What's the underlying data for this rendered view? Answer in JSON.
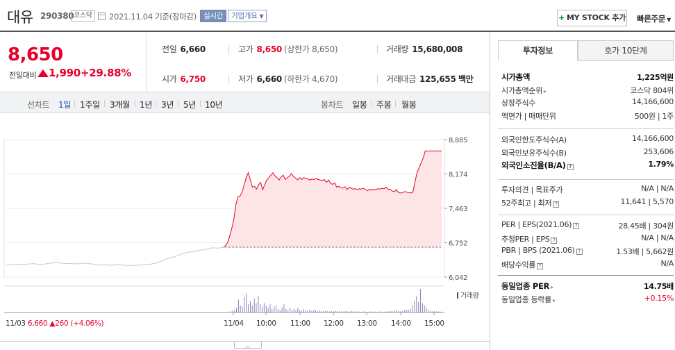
{
  "header": {
    "name": "대유",
    "code": "290380",
    "market": "코스닥",
    "date": "2021.11.04",
    "date_suffix": "기준(장마감)",
    "realtime": "실시간",
    "company_overview": "기업개요",
    "mystock": "MY STOCK 추가",
    "quick_order": "빠른주문"
  },
  "price": {
    "current": "8,650",
    "diff_label": "전일대비",
    "diff": "1,990",
    "pct": "+29.88%"
  },
  "stats": {
    "prev_label": "전일",
    "prev": "6,660",
    "high_label": "고가",
    "high": "8,650",
    "upper_limit": "(상한가 8,650)",
    "volume_label": "거래량",
    "volume": "15,680,008",
    "open_label": "시가",
    "open": "6,750",
    "low_label": "저가",
    "low": "6,660",
    "lower_limit": "(하한가 4,670)",
    "amount_label": "거래대금",
    "amount": "125,655",
    "amount_unit": "백만"
  },
  "tabs": {
    "line_label": "선차트",
    "line": [
      "1일",
      "1주일",
      "3개월",
      "1년",
      "3년",
      "5년",
      "10년"
    ],
    "candle_label": "봉차트",
    "candle": [
      "일봉",
      "주봉",
      "월봉"
    ]
  },
  "chart_data": {
    "type": "line",
    "yticks": [
      "8,885",
      "8,174",
      "7,463",
      "6,752",
      "6,042"
    ],
    "ylim": [
      6042,
      8885
    ],
    "base_price": 6660,
    "prev_day_label": "11/03",
    "prev_day_close": "6,660",
    "prev_day_change": "260",
    "prev_day_pct": "(+4.06%)",
    "xlabels": [
      "11/04",
      "10:00",
      "11:00",
      "12:00",
      "13:00",
      "14:00",
      "15:00"
    ],
    "volume_label": "거래량",
    "prev_day_series": [
      6290,
      6300,
      6305,
      6300,
      6310,
      6320,
      6305,
      6310,
      6330,
      6340,
      6330,
      6320,
      6320,
      6315,
      6330,
      6320,
      6300,
      6290,
      6295,
      6285,
      6300,
      6290,
      6280,
      6285,
      6290,
      6300,
      6310,
      6330,
      6380,
      6430,
      6450,
      6500,
      6540,
      6560,
      6580,
      6600,
      6620,
      6650,
      6640,
      6660
    ],
    "series": [
      6660,
      6700,
      6760,
      6900,
      7050,
      7250,
      7550,
      7700,
      7720,
      7800,
      7950,
      8100,
      8200,
      8050,
      7900,
      7920,
      7860,
      7950,
      8000,
      7850,
      7950,
      8050,
      8100,
      8150,
      8200,
      8130,
      8100,
      8050,
      8110,
      8150,
      8060,
      8100,
      8130,
      8180,
      8120,
      8090,
      8050,
      8100,
      8060,
      8100,
      8080,
      8070,
      8050,
      8070,
      8060,
      8080,
      8060,
      8050,
      8040,
      8060,
      8000,
      8050,
      7980,
      7960,
      7990,
      7900,
      7920,
      7890,
      7880,
      7910,
      7850,
      7900,
      7880,
      7860,
      7870,
      7850,
      7870,
      7860,
      7880,
      7850,
      7830,
      7860,
      7840,
      7860,
      7850,
      7870,
      7860,
      7880,
      7870,
      7900,
      7850,
      7860,
      7820,
      7810,
      7850,
      7790,
      7780,
      7790,
      7810,
      7800,
      7790,
      7780,
      7800,
      8000,
      8200,
      8300,
      8400,
      8500,
      8650,
      8650,
      8650,
      8650,
      8650,
      8650,
      8650,
      8650,
      8650
    ],
    "volume": [
      0.05,
      0.08,
      0.1,
      0.2,
      0.55,
      0.3,
      0.25,
      0.65,
      0.8,
      0.35,
      0.5,
      0.3,
      0.6,
      0.4,
      0.7,
      0.35,
      0.25,
      0.4,
      0.3,
      0.2,
      0.35,
      0.15,
      0.25,
      0.3,
      0.15,
      0.1,
      0.2,
      0.35,
      0.15,
      0.1,
      0.2,
      0.1,
      0.15,
      0.1,
      0.2,
      0.1,
      0.08,
      0.15,
      0.1,
      0.08,
      0.12,
      0.06,
      0.1,
      0.08,
      0.05,
      0.1,
      0.06,
      0.05,
      0.08,
      0.05,
      0.04,
      0.06,
      0.05,
      0.08,
      0.06,
      0.04,
      0.05,
      0.04,
      0.06,
      0.05,
      0.04,
      0.06,
      0.05,
      0.04,
      0.05,
      0.04,
      0.03,
      0.05,
      0.04,
      0.03,
      0.04,
      0.05,
      0.03,
      0.04,
      0.03,
      0.05,
      0.04,
      0.03,
      0.04,
      0.05,
      0.04,
      0.06,
      0.05,
      0.08,
      0.1,
      0.06,
      0.05,
      0.08,
      0.1,
      0.12,
      0.1,
      0.15,
      0.3,
      0.5,
      0.7,
      0.45,
      1.0,
      0.4,
      0.3,
      0.2,
      0.1,
      0.08,
      0.05,
      0.05,
      0.04,
      0.05,
      0.04
    ]
  },
  "panel": {
    "tab_invest": "투자정보",
    "tab_hoga": "호가 10단계",
    "rows1": [
      {
        "l": "시가총액",
        "r": "1,225억원",
        "bold": true
      },
      {
        "l": "시가총액순위",
        "r": "코스닥 804위",
        "caret": true
      },
      {
        "l": "상장주식수",
        "r": "14,166,600"
      },
      {
        "l": "액면가 | 매매단위",
        "r": "500원 | 1주"
      }
    ],
    "rows2": [
      {
        "l": "외국인한도주식수(A)",
        "r": "14,166,600"
      },
      {
        "l": "외국인보유주식수(B)",
        "r": "253,606"
      },
      {
        "l": "외국인소진율(B/A)",
        "r": "1.79%",
        "bold": true,
        "q": true
      }
    ],
    "rows3": [
      {
        "l": "투자의견 | 목표주가",
        "r": "N/A | N/A"
      },
      {
        "l": "52주최고 | 최저",
        "r": "11,641 | 5,570",
        "q": true
      }
    ],
    "rows4": [
      {
        "l": "PER | EPS(2021.06)",
        "r": "28.45배 | 304원",
        "q": true
      },
      {
        "l": "추정PER | EPS",
        "r": "N/A | N/A",
        "q": true
      },
      {
        "l": "PBR | BPS (2021.06)",
        "r": "1.53배 | 5,662원",
        "q": true
      },
      {
        "l": "배당수익률",
        "r": "N/A",
        "q": true
      }
    ],
    "rows5": [
      {
        "l": "동일업종 PER",
        "r": "14.75배",
        "bold": true,
        "caret": true
      },
      {
        "l": "동일업종 등락률",
        "r": "+0.15%",
        "red": true,
        "caret": true
      }
    ]
  },
  "colors": {
    "up": "#e8002a",
    "fill": "#fde4e6",
    "volume": "#8f80bd"
  }
}
